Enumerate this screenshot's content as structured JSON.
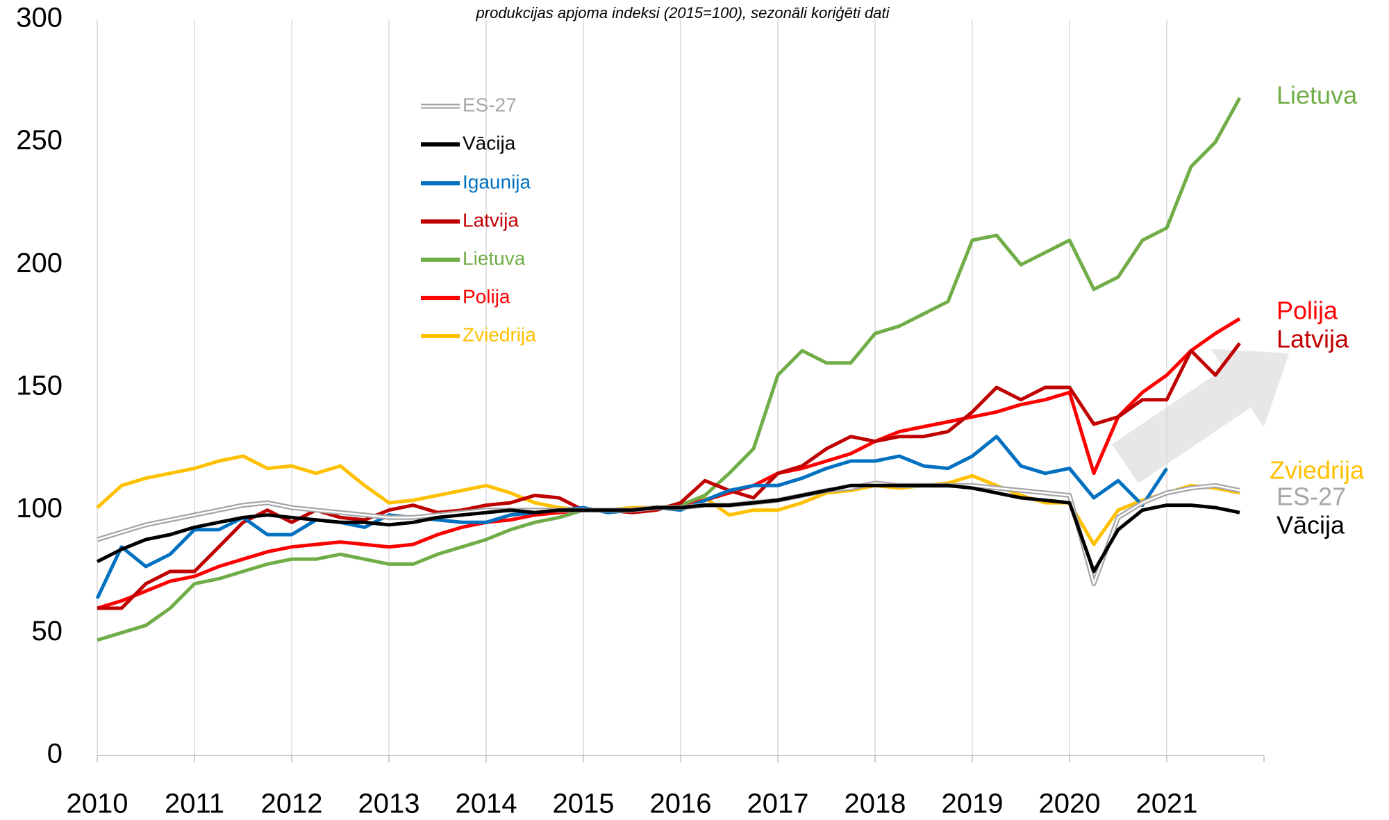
{
  "chart_data": {
    "type": "line",
    "title": "produkcijas apjoma indeksi (2015=100), sezonāli koriģēti dati",
    "x": [
      2010,
      2010.25,
      2010.5,
      2010.75,
      2011,
      2011.25,
      2011.5,
      2011.75,
      2012,
      2012.25,
      2012.5,
      2012.75,
      2013,
      2013.25,
      2013.5,
      2013.75,
      2014,
      2014.25,
      2014.5,
      2014.75,
      2015,
      2015.25,
      2015.5,
      2015.75,
      2016,
      2016.25,
      2016.5,
      2016.75,
      2017,
      2017.25,
      2017.5,
      2017.75,
      2018,
      2018.25,
      2018.5,
      2018.75,
      2019,
      2019.25,
      2019.5,
      2019.75,
      2020,
      2020.25,
      2020.5,
      2020.75,
      2021,
      2021.25,
      2021.5,
      2021.75
    ],
    "xlim": [
      2010,
      2022
    ],
    "xticks": [
      2010,
      2011,
      2012,
      2013,
      2014,
      2015,
      2016,
      2017,
      2018,
      2019,
      2020,
      2021
    ],
    "ylim": [
      0,
      300
    ],
    "yticks": [
      0,
      50,
      100,
      150,
      200,
      250,
      300
    ],
    "grid": true,
    "series": [
      {
        "name": "ES-27",
        "color": "#a6a6a6",
        "values": [
          88,
          91,
          94,
          96,
          98,
          100,
          102,
          103,
          101,
          100,
          99,
          98,
          97,
          97,
          98,
          99,
          100,
          100,
          100,
          100,
          100,
          100,
          100,
          101,
          101,
          102,
          102,
          103,
          104,
          106,
          108,
          109,
          111,
          110,
          110,
          110,
          110,
          109,
          108,
          107,
          106,
          70,
          97,
          103,
          107,
          109,
          110,
          108
        ]
      },
      {
        "name": "Vācija",
        "color": "#000000",
        "values": [
          79,
          84,
          88,
          90,
          93,
          95,
          97,
          98,
          97,
          96,
          95,
          95,
          94,
          95,
          97,
          98,
          99,
          100,
          99,
          100,
          100,
          100,
          100,
          101,
          101,
          102,
          102,
          103,
          104,
          106,
          108,
          110,
          110,
          110,
          110,
          110,
          109,
          107,
          105,
          104,
          103,
          75,
          92,
          100,
          102,
          102,
          101,
          99
        ]
      },
      {
        "name": "Igaunija",
        "color": "#0070c0",
        "values": [
          64,
          85,
          77,
          82,
          92,
          92,
          97,
          90,
          90,
          96,
          95,
          93,
          98,
          97,
          96,
          95,
          95,
          98,
          99,
          100,
          101,
          99,
          100,
          101,
          100,
          104,
          108,
          110,
          110,
          113,
          117,
          120,
          120,
          122,
          118,
          117,
          122,
          130,
          118,
          115,
          117,
          105,
          112,
          102,
          117,
          null,
          null,
          null
        ]
      },
      {
        "name": "Latvija",
        "color": "#c00000",
        "values": [
          60,
          60,
          70,
          75,
          75,
          85,
          95,
          100,
          95,
          100,
          97,
          96,
          100,
          102,
          99,
          100,
          102,
          103,
          106,
          105,
          100,
          100,
          99,
          100,
          103,
          112,
          108,
          105,
          115,
          118,
          125,
          130,
          128,
          130,
          130,
          132,
          140,
          150,
          145,
          150,
          150,
          135,
          138,
          145,
          145,
          165,
          155,
          168
        ]
      },
      {
        "name": "Lietuva",
        "color": "#70ad47",
        "values": [
          47,
          50,
          53,
          60,
          70,
          72,
          75,
          78,
          80,
          80,
          82,
          80,
          78,
          78,
          82,
          85,
          88,
          92,
          95,
          97,
          100,
          100,
          100,
          101,
          102,
          106,
          115,
          125,
          155,
          165,
          160,
          160,
          172,
          175,
          180,
          185,
          210,
          212,
          200,
          205,
          210,
          190,
          195,
          210,
          215,
          240,
          250,
          268
        ]
      },
      {
        "name": "Polija",
        "color": "#ff0000",
        "values": [
          60,
          63,
          67,
          71,
          73,
          77,
          80,
          83,
          85,
          86,
          87,
          86,
          85,
          86,
          90,
          93,
          95,
          96,
          98,
          99,
          100,
          100,
          100,
          101,
          102,
          104,
          107,
          110,
          115,
          117,
          120,
          123,
          128,
          132,
          134,
          136,
          138,
          140,
          143,
          145,
          148,
          115,
          138,
          148,
          155,
          165,
          172,
          178
        ]
      },
      {
        "name": "Zviedrija",
        "color": "#ffc000",
        "values": [
          101,
          110,
          113,
          115,
          117,
          120,
          122,
          117,
          118,
          115,
          118,
          110,
          103,
          104,
          106,
          108,
          110,
          107,
          103,
          101,
          100,
          100,
          101,
          101,
          102,
          105,
          98,
          100,
          100,
          103,
          107,
          108,
          110,
          109,
          110,
          111,
          114,
          110,
          106,
          103,
          103,
          86,
          100,
          104,
          107,
          110,
          109,
          107
        ]
      }
    ]
  }
}
